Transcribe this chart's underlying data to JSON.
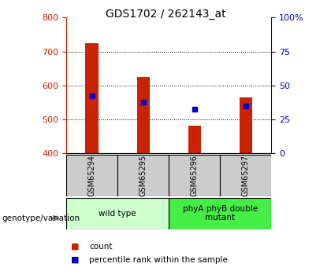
{
  "title": "GDS1702 / 262143_at",
  "samples": [
    "GSM65294",
    "GSM65295",
    "GSM65296",
    "GSM65297"
  ],
  "red_bar_values": [
    725,
    625,
    480,
    565
  ],
  "blue_marker_values": [
    570,
    550,
    530,
    540
  ],
  "ylim_left": [
    400,
    800
  ],
  "ylim_right": [
    0,
    100
  ],
  "left_yticks": [
    400,
    500,
    600,
    700,
    800
  ],
  "right_yticks": [
    0,
    25,
    50,
    75,
    100
  ],
  "right_yticklabels": [
    "0",
    "25",
    "50",
    "75",
    "100%"
  ],
  "bar_color": "#cc2200",
  "marker_color": "#0000cc",
  "groups": [
    {
      "label": "wild type",
      "samples": [
        0,
        1
      ],
      "color": "#ccffcc"
    },
    {
      "label": "phyA phyB double\nmutant",
      "samples": [
        2,
        3
      ],
      "color": "#44ee44"
    }
  ],
  "legend_items": [
    {
      "label": "count",
      "color": "#cc2200"
    },
    {
      "label": "percentile rank within the sample",
      "color": "#0000cc"
    }
  ],
  "genotype_label": "genotype/variation",
  "tick_color_left": "#cc2200",
  "tick_color_right": "#0000cc",
  "sample_cell_color": "#cccccc",
  "bar_width": 0.25
}
